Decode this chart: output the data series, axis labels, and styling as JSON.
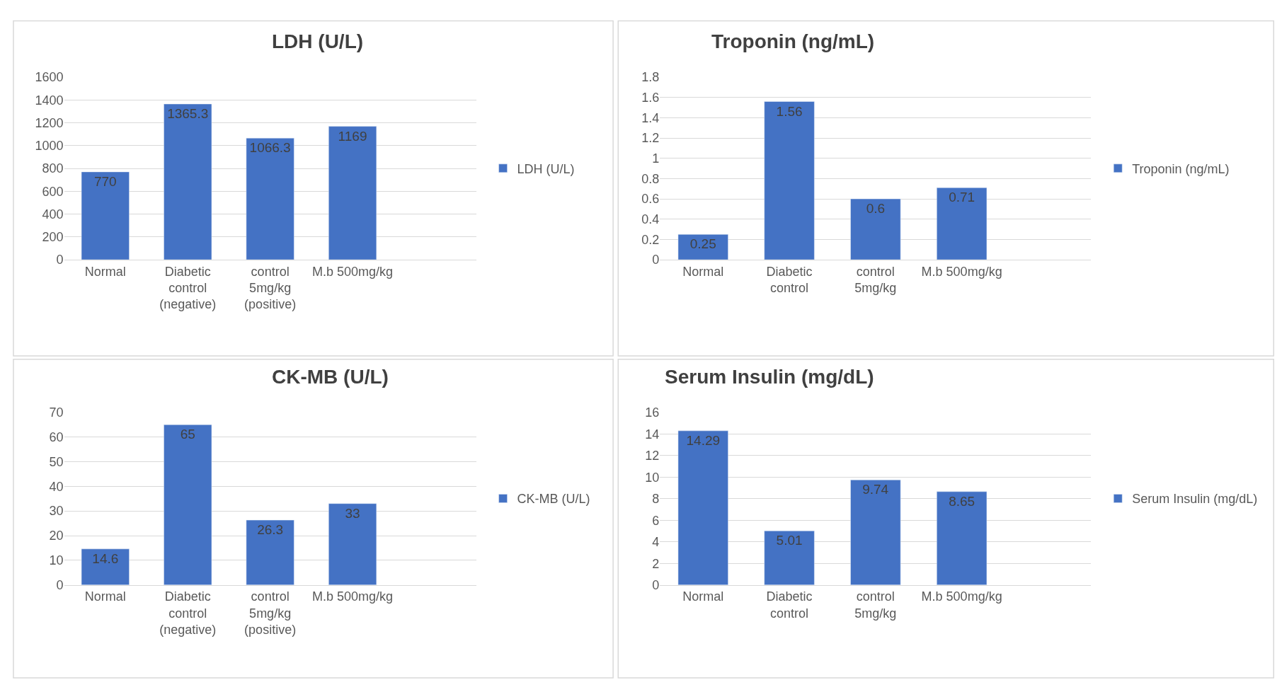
{
  "chart_data": [
    {
      "type": "bar",
      "title": "LDH (U/L)",
      "categories": [
        "Normal",
        "Diabetic control (negative)",
        "control 5mg/kg (positive)",
        "M.b 500mg/kg"
      ],
      "series": [
        {
          "name": "LDH (U/L)",
          "color": "#4472c4",
          "values": [
            770,
            1365.3,
            1066.3,
            1169
          ]
        }
      ],
      "ylim": [
        0,
        1600
      ],
      "yticks": [
        0,
        200,
        400,
        600,
        800,
        1000,
        1200,
        1400,
        1600
      ],
      "grid": "y",
      "legend": "right",
      "data_labels": true
    },
    {
      "type": "bar",
      "title": "Troponin (ng/mL)",
      "categories": [
        "Normal",
        "Diabetic control",
        "control 5mg/kg",
        "M.b 500mg/kg"
      ],
      "series": [
        {
          "name": "Troponin (ng/mL)",
          "color": "#4472c4",
          "values": [
            0.25,
            1.56,
            0.6,
            0.71
          ]
        }
      ],
      "ylim": [
        0,
        1.8
      ],
      "yticks": [
        0,
        0.2,
        0.4,
        0.6,
        0.8,
        1,
        1.2,
        1.4,
        1.6,
        1.8
      ],
      "grid": "y",
      "legend": "right",
      "data_labels": true
    },
    {
      "type": "bar",
      "title": "CK-MB (U/L)",
      "categories": [
        "Normal",
        "Diabetic control (negative)",
        "control 5mg/kg (positive)",
        "M.b 500mg/kg"
      ],
      "series": [
        {
          "name": "CK-MB (U/L)",
          "color": "#4472c4",
          "values": [
            14.6,
            65,
            26.3,
            33
          ]
        }
      ],
      "ylim": [
        0,
        70
      ],
      "yticks": [
        0,
        10,
        20,
        30,
        40,
        50,
        60,
        70
      ],
      "grid": "y",
      "legend": "right",
      "data_labels": true
    },
    {
      "type": "bar",
      "title": "Serum Insulin (mg/dL)",
      "categories": [
        "Normal",
        "Diabetic control",
        "control 5mg/kg",
        "M.b 500mg/kg"
      ],
      "series": [
        {
          "name": "Serum Insulin (mg/dL)",
          "color": "#4472c4",
          "values": [
            14.29,
            5.01,
            9.74,
            8.65
          ]
        }
      ],
      "ylim": [
        0,
        16
      ],
      "yticks": [
        0,
        2,
        4,
        6,
        8,
        10,
        12,
        14,
        16
      ],
      "grid": "y",
      "legend": "right",
      "data_labels": true
    }
  ]
}
